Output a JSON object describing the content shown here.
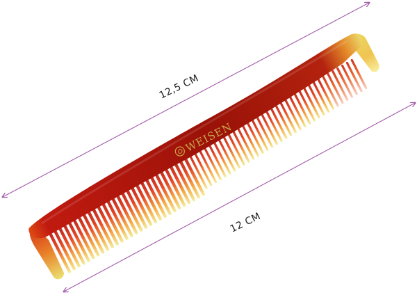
{
  "dimensions": {
    "total_length_label": "12,5 CM",
    "teeth_length_label": "12 CM"
  },
  "comb": {
    "brand": "WEISEN"
  },
  "colors": {
    "measure_line": "#a05aa8",
    "comb_dark": "#8e0f08",
    "comb_red": "#d8261a",
    "comb_orange": "#f07a1c",
    "comb_yellow": "#e7e25a",
    "brand_gold": "#caa64a"
  }
}
